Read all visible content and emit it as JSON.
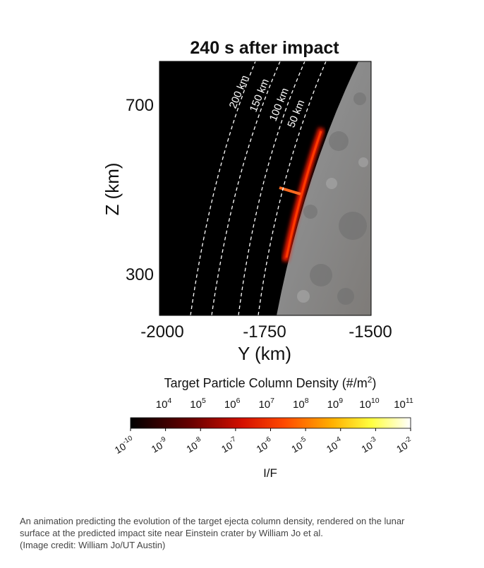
{
  "figure": {
    "title": "240 s after impact",
    "x_axis": {
      "label": "Y (km)",
      "ticks": [
        "-2000",
        "-1750",
        "-1500"
      ]
    },
    "y_axis": {
      "label": "Z (km)",
      "ticks": [
        "700",
        "300"
      ]
    },
    "contours": [
      "200 km",
      "150 km",
      "100 km",
      "50 km"
    ],
    "colorbar": {
      "title": {
        "text": "Target  Particle  Column  Density  (#/m",
        "superscript": "2",
        "end": ")"
      },
      "top_ticks": [
        {
          "base": "10",
          "exp": "4"
        },
        {
          "base": "10",
          "exp": "5"
        },
        {
          "base": "10",
          "exp": "6"
        },
        {
          "base": "10",
          "exp": "7"
        },
        {
          "base": "10",
          "exp": "8"
        },
        {
          "base": "10",
          "exp": "9"
        },
        {
          "base": "10",
          "exp": "10"
        },
        {
          "base": "10",
          "exp": "11"
        }
      ],
      "bottom_ticks": [
        {
          "base": "10",
          "exp": "-10"
        },
        {
          "base": "10",
          "exp": "-9"
        },
        {
          "base": "10",
          "exp": "-8"
        },
        {
          "base": "10",
          "exp": "-7"
        },
        {
          "base": "10",
          "exp": "-6"
        },
        {
          "base": "10",
          "exp": "-5"
        },
        {
          "base": "10",
          "exp": "-4"
        },
        {
          "base": "10",
          "exp": "-3"
        },
        {
          "base": "10",
          "exp": "-2"
        }
      ],
      "bottom_label": "I/F"
    },
    "caption": [
      "An animation predicting the evolution of the target ejecta column density, rendered on the lunar",
      "surface at the predicted impact site near Einstein crater by William Jo et al.",
      "(Image credit: William Jo/UT Austin)"
    ]
  }
}
